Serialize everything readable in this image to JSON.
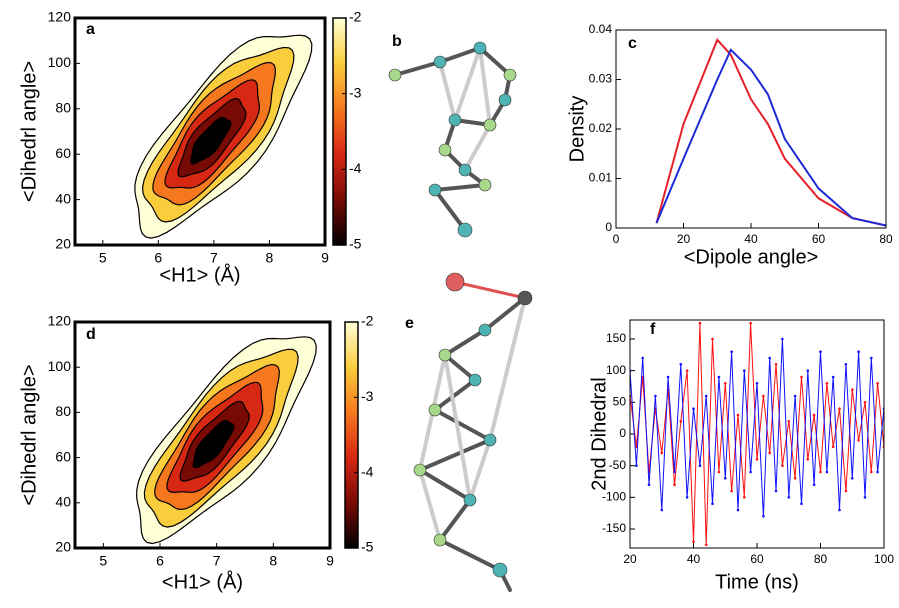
{
  "chart_data": [
    {
      "type": "contour",
      "label": "a",
      "xlabel": "<H1> (Å)",
      "ylabel": "<Dihedrl angle>",
      "xlim": [
        4.5,
        9
      ],
      "xticks": [
        5,
        6,
        7,
        8,
        9
      ],
      "ylim": [
        20,
        120
      ],
      "yticks": [
        20,
        40,
        60,
        80,
        100,
        120
      ],
      "colorbar": {
        "lim": [
          -5,
          -2
        ],
        "ticks": [
          -5,
          -4,
          -3,
          -2
        ]
      }
    },
    {
      "type": "structure",
      "label": "b"
    },
    {
      "type": "line",
      "label": "c",
      "xlabel": "<Dipole angle>",
      "ylabel": "Density",
      "xlim": [
        0,
        80
      ],
      "xticks": [
        0,
        20,
        40,
        60,
        80
      ],
      "ylim": [
        0,
        0.04
      ],
      "yticks": [
        0,
        0.01,
        0.02,
        0.03,
        0.04
      ],
      "x": [
        12,
        20,
        30,
        34,
        40,
        45,
        50,
        60,
        70,
        80
      ],
      "series": [
        {
          "color": "#e8202a",
          "values": [
            0.001,
            0.021,
            0.038,
            0.035,
            0.026,
            0.021,
            0.014,
            0.006,
            0.002,
            0.0005
          ]
        },
        {
          "color": "#1c2bd6",
          "values": [
            0.001,
            0.014,
            0.03,
            0.036,
            0.032,
            0.027,
            0.018,
            0.008,
            0.002,
            0.0005
          ]
        }
      ]
    },
    {
      "type": "contour",
      "label": "d",
      "xlabel": "<H1> (Å)",
      "ylabel": "<Dihedrl angle>",
      "xlim": [
        4.5,
        9
      ],
      "xticks": [
        5,
        6,
        7,
        8,
        9
      ],
      "ylim": [
        20,
        120
      ],
      "yticks": [
        20,
        40,
        60,
        80,
        100,
        120
      ],
      "colorbar": {
        "lim": [
          -5,
          -2
        ],
        "ticks": [
          -5,
          -4,
          -3,
          -2
        ]
      }
    },
    {
      "type": "structure",
      "label": "e"
    },
    {
      "type": "line",
      "label": "f",
      "xlabel": "Time (ns)",
      "ylabel": "2nd Dihedral",
      "xlim": [
        20,
        100
      ],
      "xticks": [
        20,
        40,
        60,
        80,
        100
      ],
      "ylim": [
        -180,
        180
      ],
      "yticks": [
        -150,
        -100,
        -50,
        0,
        50,
        100,
        150
      ],
      "x": [
        20,
        22,
        24,
        26,
        28,
        30,
        32,
        34,
        36,
        38,
        40,
        42,
        44,
        46,
        48,
        50,
        52,
        54,
        56,
        58,
        60,
        62,
        64,
        66,
        68,
        70,
        72,
        74,
        76,
        78,
        80,
        82,
        84,
        86,
        88,
        90,
        92,
        94,
        96,
        98,
        100
      ],
      "series": [
        {
          "color": "#ff1010",
          "values": [
            60,
            -20,
            90,
            -60,
            40,
            -30,
            70,
            -80,
            20,
            100,
            -170,
            175,
            -175,
            150,
            -60,
            80,
            -90,
            30,
            -100,
            175,
            -40,
            60,
            -30,
            110,
            -50,
            20,
            -70,
            90,
            -40,
            30,
            -60,
            80,
            -20,
            40,
            -90,
            70,
            -10,
            50,
            -60,
            80,
            -20
          ]
        },
        {
          "color": "#1010ff",
          "values": [
            100,
            -50,
            120,
            -80,
            60,
            -120,
            90,
            -60,
            110,
            -100,
            40,
            -50,
            60,
            -110,
            90,
            -70,
            130,
            -120,
            100,
            -60,
            80,
            -130,
            120,
            -90,
            150,
            -100,
            60,
            -110,
            100,
            -80,
            130,
            -60,
            90,
            -120,
            110,
            -70,
            130,
            -100,
            120,
            -60,
            40
          ]
        }
      ]
    }
  ]
}
